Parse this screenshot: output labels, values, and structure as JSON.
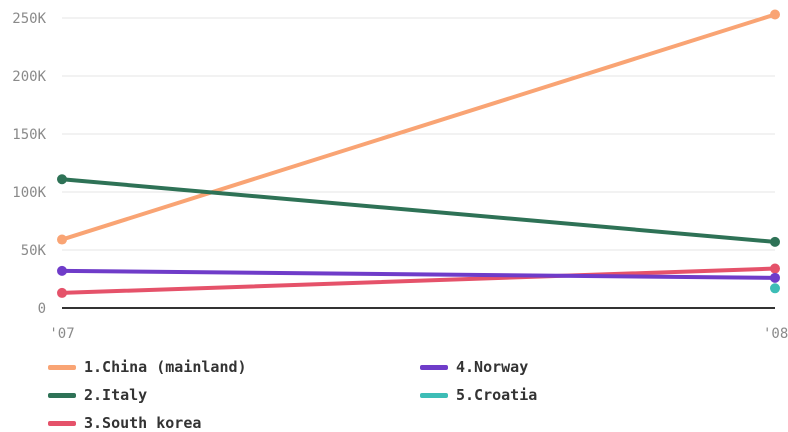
{
  "chart_data": {
    "type": "line",
    "x": [
      "'07",
      "'08"
    ],
    "ylim": [
      0,
      250000
    ],
    "yticks": [
      {
        "value": 0,
        "label": "0"
      },
      {
        "value": 50000,
        "label": "50K"
      },
      {
        "value": 100000,
        "label": "100K"
      },
      {
        "value": 150000,
        "label": "150K"
      },
      {
        "value": 200000,
        "label": "200K"
      },
      {
        "value": 250000,
        "label": "250K"
      }
    ],
    "grid": true,
    "legend_position": "bottom",
    "series": [
      {
        "name": "1.China (mainland)",
        "color": "#F9A474",
        "values": [
          59000,
          253000
        ]
      },
      {
        "name": "2.Italy",
        "color": "#2E7256",
        "values": [
          111000,
          57000
        ]
      },
      {
        "name": "3.South korea",
        "color": "#E5526A",
        "values": [
          13000,
          34000
        ]
      },
      {
        "name": "4.Norway",
        "color": "#6F3CC9",
        "values": [
          32000,
          26000
        ]
      },
      {
        "name": "5.Croatia",
        "color": "#3DBDB6",
        "values": [
          null,
          17000
        ]
      }
    ]
  }
}
